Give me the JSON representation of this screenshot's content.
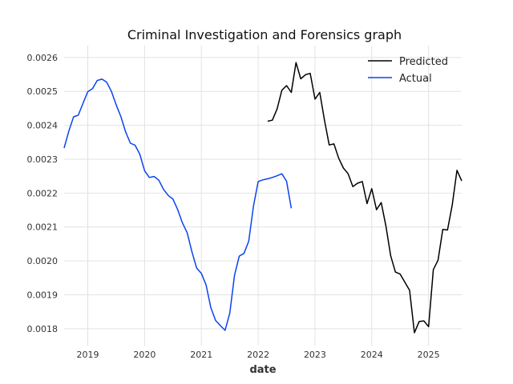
{
  "chart_data": {
    "type": "line",
    "title": "Criminal Investigation and Forensics graph",
    "xlabel": "date",
    "ylabel": "",
    "x_tick_labels": [
      "2019",
      "2020",
      "2021",
      "2022",
      "2023",
      "2024",
      "2025"
    ],
    "y_tick_labels": [
      "0.0018",
      "0.0019",
      "0.0020",
      "0.0021",
      "0.0022",
      "0.0023",
      "0.0024",
      "0.0025",
      "0.0026"
    ],
    "xlim": [
      "2018-08-01",
      "2025-08-01"
    ],
    "ylim": [
      0.00175,
      0.002635
    ],
    "grid": true,
    "legend_position": "top-right",
    "series": [
      {
        "name": "Predicted",
        "color": "#000000",
        "points": [
          [
            "2022-03-01",
            0.002412
          ],
          [
            "2022-04-01",
            0.002415
          ],
          [
            "2022-05-01",
            0.002448
          ],
          [
            "2022-06-01",
            0.002503
          ],
          [
            "2022-07-01",
            0.002517
          ],
          [
            "2022-08-01",
            0.002497
          ],
          [
            "2022-09-01",
            0.002585
          ],
          [
            "2022-10-01",
            0.002537
          ],
          [
            "2022-11-01",
            0.002549
          ],
          [
            "2022-12-01",
            0.002553
          ],
          [
            "2023-01-01",
            0.002477
          ],
          [
            "2023-02-01",
            0.002497
          ],
          [
            "2023-03-01",
            0.002415
          ],
          [
            "2023-04-01",
            0.002342
          ],
          [
            "2023-05-01",
            0.002345
          ],
          [
            "2023-06-01",
            0.002303
          ],
          [
            "2023-07-01",
            0.002274
          ],
          [
            "2023-08-01",
            0.002257
          ],
          [
            "2023-09-01",
            0.002219
          ],
          [
            "2023-10-01",
            0.002229
          ],
          [
            "2023-11-01",
            0.002234
          ],
          [
            "2023-12-01",
            0.002169
          ],
          [
            "2024-01-01",
            0.002213
          ],
          [
            "2024-02-01",
            0.002151
          ],
          [
            "2024-03-01",
            0.002172
          ],
          [
            "2024-04-01",
            0.002102
          ],
          [
            "2024-05-01",
            0.002015
          ],
          [
            "2024-06-01",
            0.001967
          ],
          [
            "2024-07-01",
            0.001961
          ],
          [
            "2024-08-01",
            0.001937
          ],
          [
            "2024-09-01",
            0.001913
          ],
          [
            "2024-10-01",
            0.001788
          ],
          [
            "2024-11-01",
            0.001821
          ],
          [
            "2024-12-01",
            0.001823
          ],
          [
            "2025-01-01",
            0.001806
          ],
          [
            "2025-02-01",
            0.001974
          ],
          [
            "2025-03-01",
            0.002002
          ],
          [
            "2025-04-01",
            0.002093
          ],
          [
            "2025-05-01",
            0.002091
          ],
          [
            "2025-06-01",
            0.002165
          ],
          [
            "2025-07-01",
            0.002267
          ],
          [
            "2025-08-01",
            0.002236
          ]
        ]
      },
      {
        "name": "Actual",
        "color": "#0a43ee",
        "points": [
          [
            "2018-08-01",
            0.002333
          ],
          [
            "2018-09-01",
            0.002383
          ],
          [
            "2018-10-01",
            0.002425
          ],
          [
            "2018-11-01",
            0.00243
          ],
          [
            "2018-12-01",
            0.002465
          ],
          [
            "2019-01-01",
            0.002499
          ],
          [
            "2019-02-01",
            0.002508
          ],
          [
            "2019-03-01",
            0.002532
          ],
          [
            "2019-04-01",
            0.002536
          ],
          [
            "2019-05-01",
            0.002527
          ],
          [
            "2019-06-01",
            0.0025
          ],
          [
            "2019-07-01",
            0.00246
          ],
          [
            "2019-08-01",
            0.002425
          ],
          [
            "2019-09-01",
            0.00238
          ],
          [
            "2019-10-01",
            0.002347
          ],
          [
            "2019-11-01",
            0.002341
          ],
          [
            "2019-12-01",
            0.002314
          ],
          [
            "2020-01-01",
            0.002266
          ],
          [
            "2020-02-01",
            0.002246
          ],
          [
            "2020-03-01",
            0.002249
          ],
          [
            "2020-04-01",
            0.002238
          ],
          [
            "2020-05-01",
            0.002211
          ],
          [
            "2020-06-01",
            0.002193
          ],
          [
            "2020-07-01",
            0.002182
          ],
          [
            "2020-08-01",
            0.002151
          ],
          [
            "2020-09-01",
            0.002112
          ],
          [
            "2020-10-01",
            0.002083
          ],
          [
            "2020-11-01",
            0.002027
          ],
          [
            "2020-12-01",
            0.001979
          ],
          [
            "2021-01-01",
            0.001963
          ],
          [
            "2021-02-01",
            0.001929
          ],
          [
            "2021-03-01",
            0.001862
          ],
          [
            "2021-04-01",
            0.001824
          ],
          [
            "2021-05-01",
            0.001809
          ],
          [
            "2021-06-01",
            0.001795
          ],
          [
            "2021-07-01",
            0.001846
          ],
          [
            "2021-08-01",
            0.001958
          ],
          [
            "2021-09-01",
            0.002014
          ],
          [
            "2021-10-01",
            0.002022
          ],
          [
            "2021-11-01",
            0.002058
          ],
          [
            "2021-12-01",
            0.002161
          ],
          [
            "2022-01-01",
            0.002234
          ],
          [
            "2022-02-01",
            0.002239
          ],
          [
            "2022-03-01",
            0.002242
          ],
          [
            "2022-04-01",
            0.002246
          ],
          [
            "2022-05-01",
            0.002251
          ],
          [
            "2022-06-01",
            0.002257
          ],
          [
            "2022-07-01",
            0.002235
          ],
          [
            "2022-08-01",
            0.002155
          ]
        ]
      }
    ]
  }
}
